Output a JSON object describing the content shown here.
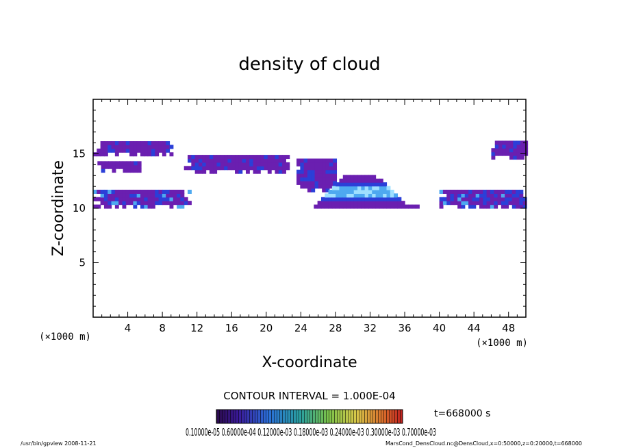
{
  "chart_data": {
    "type": "contour",
    "title": "density of cloud",
    "xlabel": "X-coordinate",
    "ylabel": "Z-coordinate",
    "x_unit": "(×1000 m)",
    "y_unit": "(×1000 m)",
    "xlim": [
      0,
      50
    ],
    "ylim": [
      0,
      20
    ],
    "x_ticks": [
      4,
      8,
      12,
      16,
      20,
      24,
      28,
      32,
      36,
      40,
      44,
      48
    ],
    "y_ticks": [
      5,
      10,
      15
    ],
    "contour_interval": "CONTOUR INTERVAL = 1.000E-04",
    "time_label": "t=668000 s",
    "colorbar_labels_text": "0.10000e-05  0.60000e-04  0.12000e-03  0.18000e-03  0.24000e-03  0.30000e-03  0.70000e-03",
    "colorbar_labels": [
      "0.10000e-05",
      "0.60000e-04",
      "0.12000e-03",
      "0.18000e-03",
      "0.24000e-03",
      "0.30000e-03",
      "0.70000e-03"
    ],
    "colors": {
      "low": "#6a1fb0",
      "mid": "#2b3fd8",
      "high": "#4ea9f0",
      "peak": "#9fe0ff"
    },
    "regions": [
      {
        "name": "upper-left-band",
        "x": [
          0,
          9
        ],
        "z": [
          14.8,
          16
        ]
      },
      {
        "name": "upper-left-lobe",
        "x": [
          0.5,
          5.5
        ],
        "z": [
          13.3,
          14.3
        ]
      },
      {
        "name": "upper-middle-band",
        "x": [
          10.5,
          22.5
        ],
        "z": [
          13.2,
          14.8
        ]
      },
      {
        "name": "lower-left-layer",
        "x": [
          0,
          11
        ],
        "z": [
          10,
          11.5
        ]
      },
      {
        "name": "central-column",
        "x": [
          23.5,
          28
        ],
        "z": [
          11.5,
          14.5
        ]
      },
      {
        "name": "central-arch",
        "x": [
          25.5,
          37.5
        ],
        "z": [
          10,
          13
        ]
      },
      {
        "name": "right-layer",
        "x": [
          40,
          50
        ],
        "z": [
          10,
          11.7
        ]
      },
      {
        "name": "upper-right-patch",
        "x": [
          46,
          50
        ],
        "z": [
          14.5,
          16
        ]
      }
    ]
  },
  "footer": {
    "left": "/usr/bin/gpview  2008-11-21",
    "right": "MarsCond_DensCloud.nc@DensCloud,x=0:50000,z=0:20000,t=668000"
  }
}
